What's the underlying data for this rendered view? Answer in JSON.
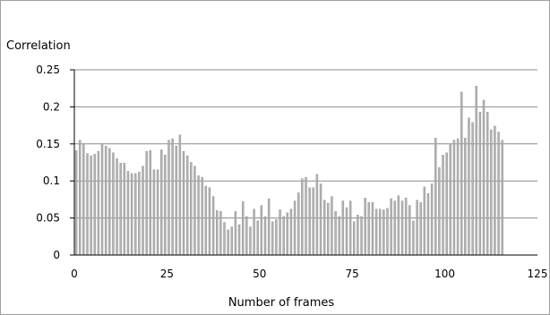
{
  "chart_data": {
    "type": "bar",
    "title": "",
    "ylabel": "Correlation",
    "xlabel": "Number of frames",
    "xlim": [
      0,
      125
    ],
    "ylim": [
      0,
      0.25
    ],
    "xticks": [
      "0",
      "25",
      "50",
      "75",
      "100",
      "125"
    ],
    "yticks": [
      "0",
      "0.05",
      "0.1",
      "0.15",
      "0.2",
      "0.25"
    ],
    "grid": "horizontal",
    "series": [
      {
        "color": "#b3b3b3",
        "values": [
          0.141,
          0.155,
          0.15,
          0.137,
          0.134,
          0.136,
          0.14,
          0.149,
          0.147,
          0.144,
          0.138,
          0.13,
          0.124,
          0.124,
          0.113,
          0.11,
          0.11,
          0.112,
          0.12,
          0.14,
          0.141,
          0.115,
          0.115,
          0.142,
          0.135,
          0.155,
          0.157,
          0.147,
          0.162,
          0.14,
          0.134,
          0.125,
          0.12,
          0.107,
          0.105,
          0.093,
          0.091,
          0.079,
          0.06,
          0.059,
          0.044,
          0.034,
          0.038,
          0.059,
          0.041,
          0.072,
          0.052,
          0.038,
          0.062,
          0.046,
          0.067,
          0.052,
          0.076,
          0.045,
          0.048,
          0.061,
          0.052,
          0.057,
          0.062,
          0.073,
          0.084,
          0.103,
          0.105,
          0.091,
          0.091,
          0.109,
          0.096,
          0.074,
          0.07,
          0.079,
          0.059,
          0.052,
          0.073,
          0.064,
          0.073,
          0.045,
          0.054,
          0.052,
          0.077,
          0.071,
          0.071,
          0.062,
          0.062,
          0.061,
          0.063,
          0.076,
          0.073,
          0.08,
          0.073,
          0.077,
          0.067,
          0.046,
          0.074,
          0.071,
          0.092,
          0.083,
          0.096,
          0.158,
          0.118,
          0.135,
          0.138,
          0.149,
          0.155,
          0.157,
          0.22,
          0.158,
          0.185,
          0.179,
          0.228,
          0.193,
          0.209,
          0.193,
          0.169,
          0.174,
          0.166,
          0.155
        ]
      }
    ]
  }
}
